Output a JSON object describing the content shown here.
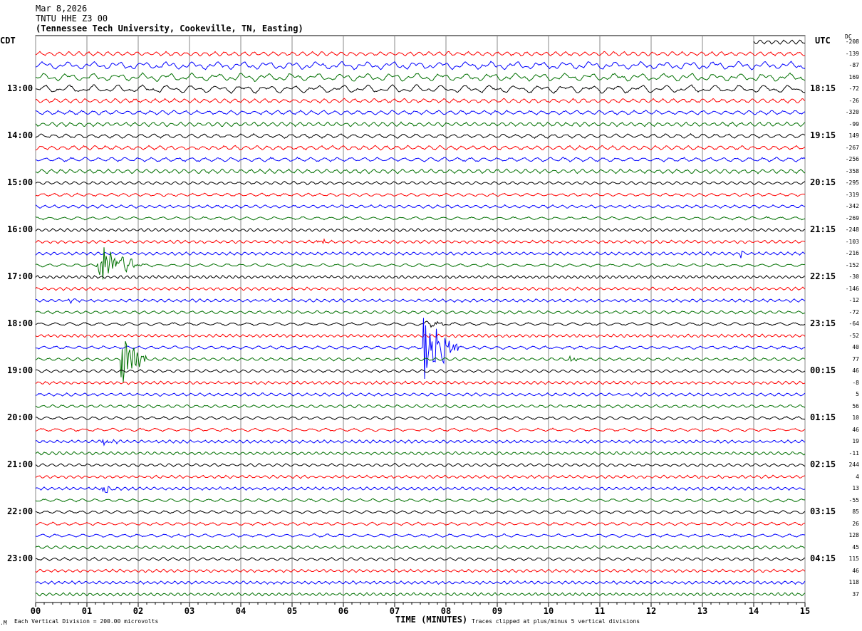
{
  "header": {
    "date": "Mar 8,2026",
    "station": "TNTU HHE Z3 00",
    "location": "(Tennessee Tech University, Cookeville, TN, Easting)"
  },
  "left_tz": "CDT",
  "right_tz": "UTC",
  "dc_label": "DC",
  "footer": {
    "scale": "Each Vertical Division =  200.00 microvolts",
    "xlabel": "TIME (MINUTES)",
    "clip_note": "Traces clipped at plus/minus 5 vertical divisions"
  },
  "chart_data": {
    "type": "line",
    "title": "TNTU HHE Z3 00 helicorder",
    "xlabel": "TIME (MINUTES)",
    "xlim": [
      0,
      15
    ],
    "x_ticks": [
      "00",
      "01",
      "02",
      "03",
      "04",
      "05",
      "06",
      "07",
      "08",
      "09",
      "10",
      "11",
      "12",
      "13",
      "14",
      "15"
    ],
    "rows": 48,
    "row_minutes": 15,
    "colors": [
      "#000000",
      "#ff0000",
      "#0000ff",
      "#007000"
    ],
    "first_row_start_minute": 14,
    "left_labels": [
      {
        "row": 4,
        "text": "13:00"
      },
      {
        "row": 8,
        "text": "14:00"
      },
      {
        "row": 12,
        "text": "15:00"
      },
      {
        "row": 16,
        "text": "16:00"
      },
      {
        "row": 20,
        "text": "17:00"
      },
      {
        "row": 24,
        "text": "18:00"
      },
      {
        "row": 28,
        "text": "19:00"
      },
      {
        "row": 32,
        "text": "20:00"
      },
      {
        "row": 36,
        "text": "21:00"
      },
      {
        "row": 40,
        "text": "22:00"
      },
      {
        "row": 44,
        "text": "23:00"
      }
    ],
    "right_labels": [
      {
        "row": 4,
        "text": "18:15"
      },
      {
        "row": 8,
        "text": "19:15"
      },
      {
        "row": 12,
        "text": "20:15"
      },
      {
        "row": 16,
        "text": "21:15"
      },
      {
        "row": 20,
        "text": "22:15"
      },
      {
        "row": 24,
        "text": "23:15"
      },
      {
        "row": 28,
        "text": "00:15"
      },
      {
        "row": 32,
        "text": "01:15"
      },
      {
        "row": 36,
        "text": "02:15"
      },
      {
        "row": 40,
        "text": "03:15"
      },
      {
        "row": 44,
        "text": "04:15"
      }
    ],
    "dc_offsets": [
      "-208",
      "-139",
      "-87",
      "169",
      "-72",
      "-26",
      "-320",
      "-99",
      "149",
      "-267",
      "-256",
      "-358",
      "-295",
      "-319",
      "-342",
      "-269",
      "-248",
      "-103",
      "-216",
      "-152",
      "-30",
      "-146",
      "-12",
      "-72",
      "-64",
      "-52",
      "40",
      "77",
      "46",
      "-8",
      "5",
      "56",
      "10",
      "46",
      "19",
      "-11",
      "244",
      "4",
      "13",
      "-55",
      "85",
      "26",
      "128",
      "45",
      "115",
      "46",
      "118",
      "37"
    ],
    "events": [
      {
        "row": 17,
        "minute": 5.5,
        "duration": 0.4,
        "amplitude": 4
      },
      {
        "row": 18,
        "minute": 13.75,
        "duration": 0.05,
        "amplitude": 18
      },
      {
        "row": 19,
        "minute": 1.2,
        "duration": 0.9,
        "amplitude": 30
      },
      {
        "row": 22,
        "minute": 0.6,
        "duration": 0.3,
        "amplitude": 3
      },
      {
        "row": 24,
        "minute": 7.6,
        "duration": 0.5,
        "amplitude": 5
      },
      {
        "row": 26,
        "minute": 7.55,
        "duration": 0.7,
        "amplitude": 50
      },
      {
        "row": 27,
        "minute": 1.65,
        "duration": 0.5,
        "amplitude": 40
      },
      {
        "row": 27,
        "minute": 10.4,
        "duration": 0.25,
        "amplitude": 5
      },
      {
        "row": 34,
        "minute": 1.3,
        "duration": 0.3,
        "amplitude": 5
      },
      {
        "row": 38,
        "minute": 1.3,
        "duration": 0.3,
        "amplitude": 6
      }
    ]
  }
}
